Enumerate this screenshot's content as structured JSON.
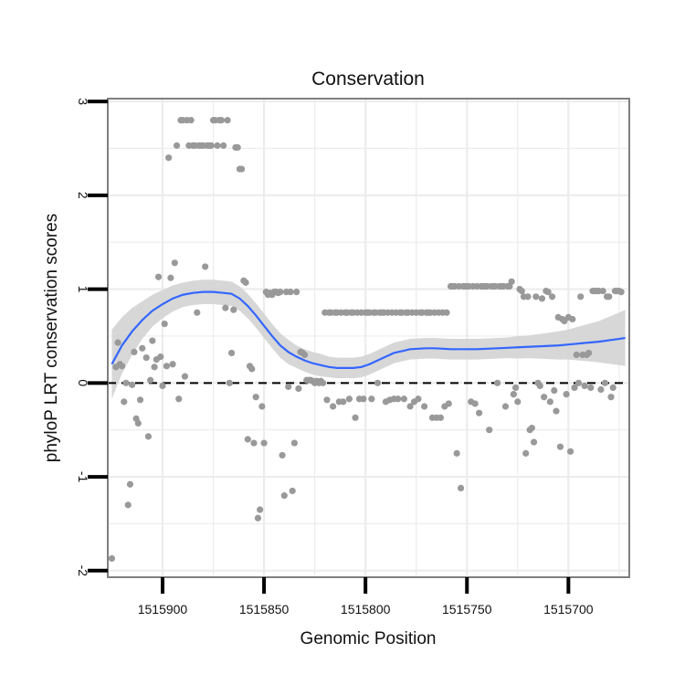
{
  "chart_data": {
    "type": "scatter",
    "title": "Conservation",
    "xlabel": "Genomic Position",
    "ylabel": "phyloP LRT conservation scores",
    "x_reversed": true,
    "xlim": [
      1515927,
      1515670
    ],
    "ylim": [
      -2.07,
      3.03
    ],
    "xticks": [
      1515900,
      1515850,
      1515800,
      1515750,
      1515700
    ],
    "xtick_labels": [
      "1515900",
      "1515850",
      "1515800",
      "1515750",
      "1515700"
    ],
    "yticks": [
      -2,
      -1,
      0,
      1,
      2,
      3
    ],
    "ytick_labels": [
      "-2",
      "-1",
      "0",
      "1",
      "2",
      "3"
    ],
    "grid": true,
    "reference_line": {
      "y": 0,
      "style": "dashed"
    },
    "colors": {
      "points": "#999999",
      "smooth": "#3366ff",
      "band": "#d3d3d3",
      "grid": "#ececec",
      "frame": "#7f7f7f"
    },
    "points": [
      [
        1515925,
        -1.87
      ],
      [
        1515923,
        0.17
      ],
      [
        1515922,
        0.43
      ],
      [
        1515921,
        0.2
      ],
      [
        1515920,
        0.18
      ],
      [
        1515919,
        -0.2
      ],
      [
        1515918,
        0.0
      ],
      [
        1515917,
        -1.3
      ],
      [
        1515916,
        -1.08
      ],
      [
        1515915,
        -0.02
      ],
      [
        1515914,
        0.33
      ],
      [
        1515913,
        -0.38
      ],
      [
        1515912,
        -0.43
      ],
      [
        1515911,
        -0.18
      ],
      [
        1515910,
        0.37
      ],
      [
        1515908,
        0.27
      ],
      [
        1515907,
        -0.57
      ],
      [
        1515906,
        0.03
      ],
      [
        1515905,
        0.45
      ],
      [
        1515904,
        0.17
      ],
      [
        1515903,
        0.25
      ],
      [
        1515902,
        1.13
      ],
      [
        1515901,
        0.28
      ],
      [
        1515900,
        -0.03
      ],
      [
        1515899,
        0.63
      ],
      [
        1515898,
        0.18
      ],
      [
        1515897,
        2.4
      ],
      [
        1515896,
        1.12
      ],
      [
        1515895,
        0.2
      ],
      [
        1515894,
        1.28
      ],
      [
        1515893,
        2.53
      ],
      [
        1515892,
        -0.17
      ],
      [
        1515891,
        2.8
      ],
      [
        1515890,
        2.8
      ],
      [
        1515889,
        0.07
      ],
      [
        1515888,
        2.8
      ],
      [
        1515887,
        2.53
      ],
      [
        1515886,
        2.8
      ],
      [
        1515885,
        2.53
      ],
      [
        1515884,
        2.53
      ],
      [
        1515883,
        0.75
      ],
      [
        1515882,
        2.53
      ],
      [
        1515881,
        2.53
      ],
      [
        1515880,
        2.53
      ],
      [
        1515879,
        1.24
      ],
      [
        1515878,
        2.53
      ],
      [
        1515877,
        2.53
      ],
      [
        1515876,
        2.53
      ],
      [
        1515875,
        2.8
      ],
      [
        1515874,
        2.8
      ],
      [
        1515873,
        2.53
      ],
      [
        1515872,
        2.8
      ],
      [
        1515871,
        2.8
      ],
      [
        1515870,
        2.53
      ],
      [
        1515869,
        0.8
      ],
      [
        1515868,
        2.8
      ],
      [
        1515867,
        0.0
      ],
      [
        1515866,
        0.32
      ],
      [
        1515865,
        0.78
      ],
      [
        1515864,
        2.51
      ],
      [
        1515863,
        2.51
      ],
      [
        1515862,
        2.28
      ],
      [
        1515861,
        2.28
      ],
      [
        1515860,
        1.09
      ],
      [
        1515859,
        1.07
      ],
      [
        1515858,
        -0.6
      ],
      [
        1515857,
        0.18
      ],
      [
        1515856,
        0.15
      ],
      [
        1515855,
        -0.64
      ],
      [
        1515854,
        -0.15
      ],
      [
        1515853,
        -1.44
      ],
      [
        1515852,
        -1.35
      ],
      [
        1515851,
        -0.25
      ],
      [
        1515850,
        -0.64
      ],
      [
        1515849,
        0.97
      ],
      [
        1515848,
        0.94
      ],
      [
        1515847,
        0.96
      ],
      [
        1515846,
        0.94
      ],
      [
        1515845,
        0.97
      ],
      [
        1515844,
        0.97
      ],
      [
        1515843,
        0.96
      ],
      [
        1515842,
        0.97
      ],
      [
        1515841,
        -0.77
      ],
      [
        1515840,
        -1.2
      ],
      [
        1515839,
        0.97
      ],
      [
        1515838,
        -0.04
      ],
      [
        1515837,
        0.97
      ],
      [
        1515836,
        -1.15
      ],
      [
        1515835,
        -0.64
      ],
      [
        1515834,
        0.97
      ],
      [
        1515833,
        -0.06
      ],
      [
        1515832,
        0.33
      ],
      [
        1515831,
        0.32
      ],
      [
        1515830,
        0.3
      ],
      [
        1515829,
        0.03
      ],
      [
        1515828,
        0.03
      ],
      [
        1515827,
        0.03
      ],
      [
        1515826,
        0.02
      ],
      [
        1515825,
        0.0
      ],
      [
        1515824,
        0.02
      ],
      [
        1515823,
        0.0
      ],
      [
        1515822,
        0.02
      ],
      [
        1515821,
        0.0
      ],
      [
        1515820,
        0.75
      ],
      [
        1515819,
        -0.18
      ],
      [
        1515818,
        0.75
      ],
      [
        1515817,
        0.75
      ],
      [
        1515816,
        -0.25
      ],
      [
        1515815,
        0.75
      ],
      [
        1515814,
        0.75
      ],
      [
        1515813,
        -0.2
      ],
      [
        1515812,
        0.75
      ],
      [
        1515811,
        -0.2
      ],
      [
        1515810,
        0.75
      ],
      [
        1515809,
        0.75
      ],
      [
        1515808,
        -0.17
      ],
      [
        1515807,
        0.75
      ],
      [
        1515806,
        0.75
      ],
      [
        1515805,
        -0.37
      ],
      [
        1515804,
        0.75
      ],
      [
        1515803,
        -0.17
      ],
      [
        1515802,
        0.75
      ],
      [
        1515801,
        -0.17
      ],
      [
        1515800,
        0.75
      ],
      [
        1515799,
        0.75
      ],
      [
        1515798,
        0.75
      ],
      [
        1515797,
        -0.17
      ],
      [
        1515796,
        0.75
      ],
      [
        1515795,
        0.75
      ],
      [
        1515794,
        0.0
      ],
      [
        1515793,
        0.75
      ],
      [
        1515792,
        0.75
      ],
      [
        1515791,
        0.75
      ],
      [
        1515790,
        -0.2
      ],
      [
        1515789,
        0.75
      ],
      [
        1515788,
        -0.18
      ],
      [
        1515787,
        0.75
      ],
      [
        1515786,
        -0.17
      ],
      [
        1515785,
        0.75
      ],
      [
        1515784,
        -0.17
      ],
      [
        1515783,
        0.75
      ],
      [
        1515782,
        0.75
      ],
      [
        1515781,
        -0.17
      ],
      [
        1515780,
        0.75
      ],
      [
        1515779,
        0.75
      ],
      [
        1515778,
        -0.25
      ],
      [
        1515777,
        0.75
      ],
      [
        1515776,
        -0.2
      ],
      [
        1515775,
        0.75
      ],
      [
        1515774,
        -0.17
      ],
      [
        1515773,
        0.75
      ],
      [
        1515772,
        0.75
      ],
      [
        1515771,
        -0.25
      ],
      [
        1515770,
        0.75
      ],
      [
        1515769,
        0.75
      ],
      [
        1515768,
        0.75
      ],
      [
        1515767,
        -0.37
      ],
      [
        1515766,
        0.75
      ],
      [
        1515765,
        -0.37
      ],
      [
        1515764,
        0.75
      ],
      [
        1515763,
        -0.37
      ],
      [
        1515762,
        0.75
      ],
      [
        1515761,
        -0.25
      ],
      [
        1515760,
        0.75
      ],
      [
        1515759,
        -0.22
      ],
      [
        1515758,
        1.03
      ],
      [
        1515757,
        1.03
      ],
      [
        1515756,
        1.03
      ],
      [
        1515755,
        -0.75
      ],
      [
        1515754,
        1.03
      ],
      [
        1515753,
        -1.12
      ],
      [
        1515752,
        1.03
      ],
      [
        1515751,
        1.03
      ],
      [
        1515750,
        1.03
      ],
      [
        1515749,
        1.03
      ],
      [
        1515748,
        -0.2
      ],
      [
        1515747,
        1.03
      ],
      [
        1515746,
        -0.22
      ],
      [
        1515745,
        1.03
      ],
      [
        1515744,
        -0.32
      ],
      [
        1515743,
        1.03
      ],
      [
        1515742,
        1.03
      ],
      [
        1515741,
        1.03
      ],
      [
        1515740,
        1.03
      ],
      [
        1515739,
        -0.5
      ],
      [
        1515738,
        1.03
      ],
      [
        1515737,
        1.03
      ],
      [
        1515736,
        1.03
      ],
      [
        1515735,
        0.0
      ],
      [
        1515734,
        1.03
      ],
      [
        1515733,
        1.03
      ],
      [
        1515732,
        1.03
      ],
      [
        1515731,
        -0.25
      ],
      [
        1515730,
        1.03
      ],
      [
        1515729,
        1.03
      ],
      [
        1515728,
        1.08
      ],
      [
        1515727,
        -0.12
      ],
      [
        1515726,
        -0.05
      ],
      [
        1515725,
        -0.2
      ],
      [
        1515724,
        1.0
      ],
      [
        1515723,
        0.98
      ],
      [
        1515722,
        0.92
      ],
      [
        1515721,
        -0.75
      ],
      [
        1515720,
        0.92
      ],
      [
        1515719,
        -0.5
      ],
      [
        1515718,
        -0.48
      ],
      [
        1515717,
        -0.63
      ],
      [
        1515716,
        0.92
      ],
      [
        1515715,
        0.0
      ],
      [
        1515714,
        -0.03
      ],
      [
        1515713,
        0.9
      ],
      [
        1515712,
        -0.15
      ],
      [
        1515711,
        0.98
      ],
      [
        1515710,
        0.97
      ],
      [
        1515709,
        -0.2
      ],
      [
        1515708,
        0.92
      ],
      [
        1515707,
        -0.08
      ],
      [
        1515706,
        -0.3
      ],
      [
        1515705,
        0.7
      ],
      [
        1515704,
        -0.68
      ],
      [
        1515703,
        0.68
      ],
      [
        1515702,
        0.66
      ],
      [
        1515701,
        -0.12
      ],
      [
        1515700,
        0.7
      ],
      [
        1515699,
        -0.73
      ],
      [
        1515698,
        0.68
      ],
      [
        1515697,
        -0.05
      ],
      [
        1515696,
        0.3
      ],
      [
        1515695,
        0.0
      ],
      [
        1515694,
        0.92
      ],
      [
        1515693,
        0.3
      ],
      [
        1515692,
        -0.03
      ],
      [
        1515691,
        0.3
      ],
      [
        1515690,
        0.32
      ],
      [
        1515689,
        -0.05
      ],
      [
        1515688,
        0.98
      ],
      [
        1515687,
        0.98
      ],
      [
        1515686,
        0.98
      ],
      [
        1515685,
        0.98
      ],
      [
        1515684,
        -0.07
      ],
      [
        1515683,
        0.98
      ],
      [
        1515682,
        0.0
      ],
      [
        1515681,
        0.92
      ],
      [
        1515680,
        0.92
      ],
      [
        1515679,
        -0.15
      ],
      [
        1515678,
        -0.05
      ],
      [
        1515677,
        0.98
      ],
      [
        1515676,
        0.98
      ],
      [
        1515675,
        0.98
      ],
      [
        1515674,
        0.97
      ]
    ],
    "smooth": [
      [
        1515925,
        0.2
      ],
      [
        1515920,
        0.4
      ],
      [
        1515915,
        0.55
      ],
      [
        1515910,
        0.67
      ],
      [
        1515905,
        0.77
      ],
      [
        1515900,
        0.84
      ],
      [
        1515895,
        0.9
      ],
      [
        1515890,
        0.94
      ],
      [
        1515885,
        0.96
      ],
      [
        1515880,
        0.97
      ],
      [
        1515875,
        0.97
      ],
      [
        1515870,
        0.96
      ],
      [
        1515866,
        0.95
      ],
      [
        1515862,
        0.9
      ],
      [
        1515858,
        0.82
      ],
      [
        1515854,
        0.72
      ],
      [
        1515850,
        0.61
      ],
      [
        1515846,
        0.5
      ],
      [
        1515842,
        0.4
      ],
      [
        1515838,
        0.33
      ],
      [
        1515834,
        0.28
      ],
      [
        1515830,
        0.24
      ],
      [
        1515826,
        0.21
      ],
      [
        1515822,
        0.19
      ],
      [
        1515818,
        0.17
      ],
      [
        1515814,
        0.16
      ],
      [
        1515810,
        0.16
      ],
      [
        1515806,
        0.16
      ],
      [
        1515802,
        0.17
      ],
      [
        1515798,
        0.2
      ],
      [
        1515794,
        0.24
      ],
      [
        1515790,
        0.28
      ],
      [
        1515786,
        0.32
      ],
      [
        1515782,
        0.34
      ],
      [
        1515778,
        0.36
      ],
      [
        1515774,
        0.365
      ],
      [
        1515770,
        0.37
      ],
      [
        1515766,
        0.37
      ],
      [
        1515762,
        0.365
      ],
      [
        1515758,
        0.36
      ],
      [
        1515754,
        0.36
      ],
      [
        1515750,
        0.36
      ],
      [
        1515745,
        0.36
      ],
      [
        1515740,
        0.365
      ],
      [
        1515735,
        0.37
      ],
      [
        1515730,
        0.375
      ],
      [
        1515725,
        0.38
      ],
      [
        1515720,
        0.385
      ],
      [
        1515715,
        0.39
      ],
      [
        1515710,
        0.395
      ],
      [
        1515705,
        0.4
      ],
      [
        1515700,
        0.41
      ],
      [
        1515695,
        0.42
      ],
      [
        1515690,
        0.43
      ],
      [
        1515685,
        0.44
      ],
      [
        1515680,
        0.455
      ],
      [
        1515675,
        0.47
      ],
      [
        1515672,
        0.48
      ]
    ],
    "band_halfwidth": [
      0.37,
      0.3,
      0.25,
      0.2,
      0.17,
      0.15,
      0.14,
      0.13,
      0.13,
      0.13,
      0.13,
      0.13,
      0.13,
      0.13,
      0.13,
      0.13,
      0.13,
      0.13,
      0.13,
      0.13,
      0.12,
      0.12,
      0.12,
      0.12,
      0.11,
      0.11,
      0.11,
      0.11,
      0.11,
      0.11,
      0.11,
      0.11,
      0.11,
      0.11,
      0.11,
      0.11,
      0.11,
      0.11,
      0.11,
      0.11,
      0.11,
      0.11,
      0.11,
      0.11,
      0.11,
      0.11,
      0.12,
      0.12,
      0.13,
      0.14,
      0.15,
      0.16,
      0.18,
      0.2,
      0.22,
      0.25,
      0.28,
      0.3
    ]
  }
}
